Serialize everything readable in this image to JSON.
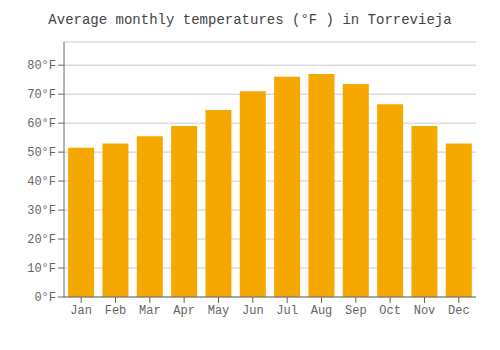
{
  "chart_data": {
    "type": "bar",
    "title": "Average monthly temperatures (°F ) in Torrevieja",
    "categories": [
      "Jan",
      "Feb",
      "Mar",
      "Apr",
      "May",
      "Jun",
      "Jul",
      "Aug",
      "Sep",
      "Oct",
      "Nov",
      "Dec"
    ],
    "values": [
      51.5,
      53,
      55.5,
      59,
      64.5,
      71,
      76,
      77,
      73.5,
      66.5,
      59,
      53
    ],
    "color": "#F5A800",
    "ylim": [
      0,
      88
    ],
    "yticks": [
      {
        "value": 0,
        "label": "0°F"
      },
      {
        "value": 10,
        "label": "10°F"
      },
      {
        "value": 20,
        "label": "20°F"
      },
      {
        "value": 30,
        "label": "30°F"
      },
      {
        "value": 40,
        "label": "40°F"
      },
      {
        "value": 50,
        "label": "50°F"
      },
      {
        "value": 60,
        "label": "60°F"
      },
      {
        "value": 70,
        "label": "70°F"
      },
      {
        "value": 80,
        "label": "80°F"
      }
    ],
    "grid": true
  }
}
